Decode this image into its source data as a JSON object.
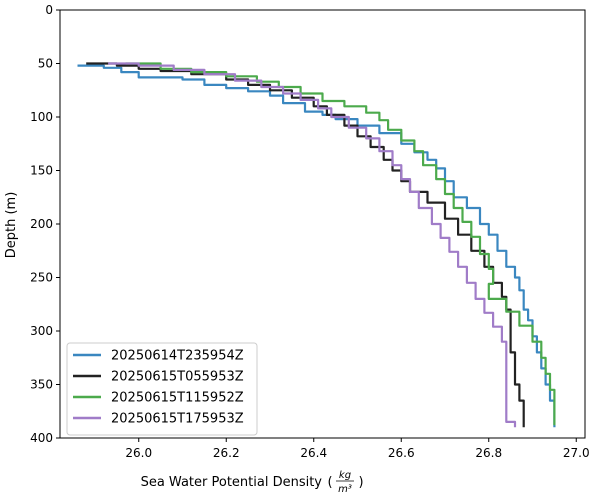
{
  "chart_data": {
    "type": "line",
    "xlabel": "Sea Water Potential Density",
    "xunit_num": "kg",
    "xunit_den": "m³",
    "ylabel": "Depth (m)",
    "xlim": [
      25.82,
      27.02
    ],
    "ylim": [
      400,
      0
    ],
    "y_inverted": true,
    "xticks": [
      26.0,
      26.2,
      26.4,
      26.6,
      26.8,
      27.0
    ],
    "xtick_labels": [
      "26.0",
      "26.2",
      "26.4",
      "26.6",
      "26.8",
      "27.0"
    ],
    "yticks": [
      0,
      50,
      100,
      150,
      200,
      250,
      300,
      350,
      400
    ],
    "ytick_labels": [
      "0",
      "50",
      "100",
      "150",
      "200",
      "250",
      "300",
      "350",
      "400"
    ],
    "grid": false,
    "legend_position": "lower-left",
    "series": [
      {
        "name": "20250614T235954Z",
        "color": "#3a87c0",
        "points": [
          [
            25.86,
            52
          ],
          [
            25.92,
            54
          ],
          [
            25.96,
            58
          ],
          [
            26.0,
            63
          ],
          [
            26.1,
            65
          ],
          [
            26.15,
            70
          ],
          [
            26.2,
            73
          ],
          [
            26.25,
            76
          ],
          [
            26.3,
            80
          ],
          [
            26.33,
            87
          ],
          [
            26.38,
            95
          ],
          [
            26.42,
            98
          ],
          [
            26.45,
            102
          ],
          [
            26.5,
            108
          ],
          [
            26.55,
            115
          ],
          [
            26.6,
            125
          ],
          [
            26.63,
            133
          ],
          [
            26.66,
            140
          ],
          [
            26.68,
            148
          ],
          [
            26.7,
            160
          ],
          [
            26.72,
            175
          ],
          [
            26.75,
            185
          ],
          [
            26.78,
            200
          ],
          [
            26.8,
            210
          ],
          [
            26.82,
            225
          ],
          [
            26.84,
            240
          ],
          [
            26.86,
            250
          ],
          [
            26.87,
            262
          ],
          [
            26.88,
            280
          ],
          [
            26.89,
            290
          ],
          [
            26.9,
            305
          ],
          [
            26.91,
            320
          ],
          [
            26.92,
            335
          ],
          [
            26.93,
            350
          ],
          [
            26.94,
            365
          ],
          [
            26.95,
            375
          ],
          [
            26.95,
            390
          ]
        ]
      },
      {
        "name": "20250615T055953Z",
        "color": "#222222",
        "points": [
          [
            25.88,
            50
          ],
          [
            25.95,
            52
          ],
          [
            26.0,
            55
          ],
          [
            26.05,
            57
          ],
          [
            26.12,
            60
          ],
          [
            26.2,
            65
          ],
          [
            26.25,
            70
          ],
          [
            26.3,
            75
          ],
          [
            26.35,
            82
          ],
          [
            26.4,
            90
          ],
          [
            26.43,
            98
          ],
          [
            26.47,
            108
          ],
          [
            26.5,
            118
          ],
          [
            26.53,
            128
          ],
          [
            26.56,
            140
          ],
          [
            26.58,
            150
          ],
          [
            26.6,
            160
          ],
          [
            26.62,
            170
          ],
          [
            26.66,
            180
          ],
          [
            26.7,
            195
          ],
          [
            26.73,
            210
          ],
          [
            26.76,
            225
          ],
          [
            26.79,
            240
          ],
          [
            26.81,
            255
          ],
          [
            26.83,
            268
          ],
          [
            26.84,
            280
          ],
          [
            26.85,
            292
          ],
          [
            26.85,
            305
          ],
          [
            26.85,
            320
          ],
          [
            26.86,
            335
          ],
          [
            26.86,
            350
          ],
          [
            26.87,
            365
          ],
          [
            26.88,
            380
          ],
          [
            26.88,
            390
          ]
        ]
      },
      {
        "name": "20250615T115952Z",
        "color": "#4caa4c",
        "points": [
          [
            25.97,
            50
          ],
          [
            26.05,
            55
          ],
          [
            26.12,
            58
          ],
          [
            26.2,
            62
          ],
          [
            26.27,
            67
          ],
          [
            26.32,
            72
          ],
          [
            26.37,
            78
          ],
          [
            26.42,
            85
          ],
          [
            26.47,
            90
          ],
          [
            26.52,
            96
          ],
          [
            26.55,
            103
          ],
          [
            26.57,
            112
          ],
          [
            26.6,
            122
          ],
          [
            26.63,
            132
          ],
          [
            26.65,
            145
          ],
          [
            26.68,
            158
          ],
          [
            26.7,
            172
          ],
          [
            26.72,
            185
          ],
          [
            26.74,
            198
          ],
          [
            26.76,
            212
          ],
          [
            26.78,
            228
          ],
          [
            26.8,
            242
          ],
          [
            26.81,
            256
          ],
          [
            26.8,
            270
          ],
          [
            26.84,
            282
          ],
          [
            26.87,
            295
          ],
          [
            26.9,
            310
          ],
          [
            26.92,
            325
          ],
          [
            26.93,
            340
          ],
          [
            26.94,
            355
          ],
          [
            26.95,
            370
          ],
          [
            26.95,
            388
          ]
        ]
      },
      {
        "name": "20250615T175953Z",
        "color": "#a07cc8",
        "points": [
          [
            25.93,
            50
          ],
          [
            26.0,
            52
          ],
          [
            26.08,
            56
          ],
          [
            26.15,
            60
          ],
          [
            26.22,
            66
          ],
          [
            26.28,
            72
          ],
          [
            26.33,
            78
          ],
          [
            26.37,
            84
          ],
          [
            26.41,
            92
          ],
          [
            26.44,
            100
          ],
          [
            26.48,
            110
          ],
          [
            26.52,
            120
          ],
          [
            26.55,
            132
          ],
          [
            26.58,
            145
          ],
          [
            26.6,
            158
          ],
          [
            26.62,
            170
          ],
          [
            26.64,
            185
          ],
          [
            26.67,
            200
          ],
          [
            26.69,
            213
          ],
          [
            26.71,
            226
          ],
          [
            26.73,
            240
          ],
          [
            26.75,
            255
          ],
          [
            26.77,
            270
          ],
          [
            26.79,
            283
          ],
          [
            26.81,
            296
          ],
          [
            26.83,
            310
          ],
          [
            26.84,
            325
          ],
          [
            26.84,
            340
          ],
          [
            26.84,
            355
          ],
          [
            26.84,
            370
          ],
          [
            26.84,
            385
          ],
          [
            26.86,
            390
          ]
        ]
      }
    ]
  }
}
